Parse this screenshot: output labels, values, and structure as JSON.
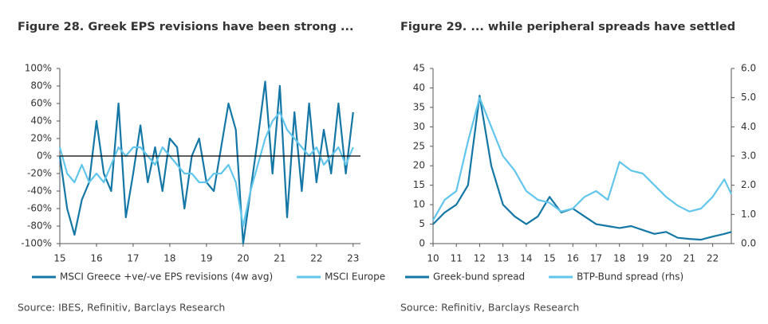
{
  "chart_data": [
    {
      "type": "line",
      "title": "Figure 28. Greek EPS revisions have been strong ...",
      "source": "Source: IBES, Refinitiv, Barclays Research",
      "x": [
        15.0,
        15.2,
        15.4,
        15.6,
        15.8,
        16.0,
        16.2,
        16.4,
        16.6,
        16.8,
        17.0,
        17.2,
        17.4,
        17.6,
        17.8,
        18.0,
        18.2,
        18.4,
        18.6,
        18.8,
        19.0,
        19.2,
        19.4,
        19.6,
        19.8,
        20.0,
        20.2,
        20.4,
        20.6,
        20.8,
        21.0,
        21.2,
        21.4,
        21.6,
        21.8,
        22.0,
        22.2,
        22.4,
        22.6,
        22.8,
        23.0
      ],
      "series": [
        {
          "name": "MSCI Greece +ve/-ve EPS revisions (4w avg)",
          "color": "#1477a6",
          "values": [
            0,
            -60,
            -90,
            -50,
            -30,
            40,
            -20,
            -40,
            60,
            -70,
            -20,
            35,
            -30,
            10,
            -40,
            20,
            10,
            -60,
            0,
            20,
            -30,
            -40,
            10,
            60,
            30,
            -100,
            -40,
            20,
            85,
            -20,
            80,
            -70,
            50,
            -40,
            60,
            -30,
            30,
            -20,
            60,
            -20,
            50
          ]
        },
        {
          "name": "MSCI Europe",
          "color": "#62c6ec",
          "values": [
            10,
            -20,
            -30,
            -10,
            -30,
            -20,
            -30,
            -10,
            10,
            0,
            10,
            10,
            0,
            -10,
            10,
            0,
            -10,
            -20,
            -20,
            -30,
            -30,
            -20,
            -20,
            -10,
            -30,
            -80,
            -40,
            -10,
            20,
            40,
            50,
            30,
            20,
            10,
            0,
            10,
            -10,
            0,
            10,
            -10,
            10
          ]
        }
      ],
      "xlim": [
        15,
        23.2
      ],
      "xticks": [
        15,
        16,
        17,
        18,
        19,
        20,
        21,
        22,
        23
      ],
      "ylim": [
        -100,
        100
      ],
      "yticks": [
        {
          "value": -100,
          "label": "-100%"
        },
        {
          "value": -80,
          "label": "-80%"
        },
        {
          "value": -60,
          "label": "-60%"
        },
        {
          "value": -40,
          "label": "-40%"
        },
        {
          "value": -20,
          "label": "-20%"
        },
        {
          "value": 0,
          "label": "0%"
        },
        {
          "value": 20,
          "label": "20%"
        },
        {
          "value": 40,
          "label": "40%"
        },
        {
          "value": 60,
          "label": "60%"
        },
        {
          "value": 80,
          "label": "80%"
        },
        {
          "value": 100,
          "label": "100%"
        }
      ],
      "zero_line": true,
      "legend": "bottom"
    },
    {
      "type": "line",
      "title": "Figure 29. ... while peripheral spreads have settled",
      "source": "Source: Refinitiv, Barclays Research",
      "x": [
        10.0,
        10.5,
        11.0,
        11.5,
        12.0,
        12.5,
        13.0,
        13.5,
        14.0,
        14.5,
        15.0,
        15.5,
        16.0,
        16.5,
        17.0,
        17.5,
        18.0,
        18.5,
        19.0,
        19.5,
        20.0,
        20.5,
        21.0,
        21.5,
        22.0,
        22.5,
        22.8
      ],
      "series": [
        {
          "name": "Greek-bund spread",
          "color": "#1477a6",
          "values": [
            5,
            8,
            10,
            15,
            38,
            20,
            10,
            7,
            5,
            7,
            12,
            8,
            9,
            7,
            5,
            4.5,
            4,
            4.5,
            3.5,
            2.5,
            3,
            1.5,
            1.2,
            1,
            1.8,
            2.5,
            3
          ]
        },
        {
          "name": "BTP-Bund spread (rhs)",
          "color": "#62c6ec",
          "axis": "y2",
          "values": [
            0.8,
            1.5,
            1.8,
            3.5,
            5.0,
            4.0,
            3.0,
            2.5,
            1.8,
            1.5,
            1.4,
            1.1,
            1.2,
            1.6,
            1.8,
            1.5,
            2.8,
            2.5,
            2.4,
            2.0,
            1.6,
            1.3,
            1.1,
            1.2,
            1.6,
            2.2,
            1.7
          ]
        }
      ],
      "xlim": [
        10,
        22.8
      ],
      "xticks": [
        10,
        11,
        12,
        13,
        14,
        15,
        16,
        17,
        18,
        19,
        20,
        21,
        22
      ],
      "ylim": [
        0,
        45
      ],
      "yticks": [
        0,
        5,
        10,
        15,
        20,
        25,
        30,
        35,
        40,
        45
      ],
      "y2lim": [
        0,
        6
      ],
      "y2ticks": [
        {
          "value": 0,
          "label": "0.0"
        },
        {
          "value": 1,
          "label": "1.0"
        },
        {
          "value": 2,
          "label": "2.0"
        },
        {
          "value": 3,
          "label": "3.0"
        },
        {
          "value": 4,
          "label": "4.0"
        },
        {
          "value": 5,
          "label": "5.0"
        },
        {
          "value": 6,
          "label": "6.0"
        }
      ],
      "zero_line": false,
      "legend": "bottom"
    }
  ]
}
